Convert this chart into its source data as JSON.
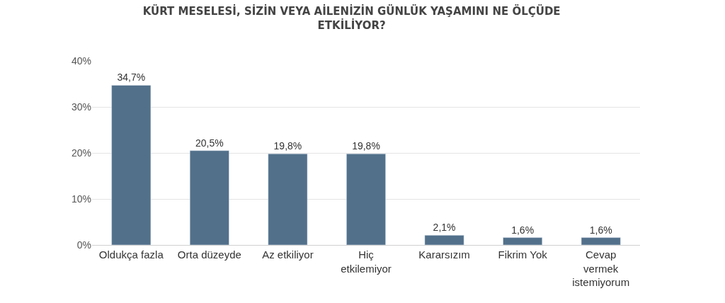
{
  "chart_data": {
    "type": "bar",
    "title": "KÜRT MESELESİ, SİZİN VEYA AİLENİZİN GÜNLÜK YAŞAMINI NE ÖLÇÜDE ETKİLİYOR?",
    "categories": [
      "Oldukça fazla",
      "Orta düzeyde",
      "Az etkiliyor",
      "Hiç etkilemiyor",
      "Kararsızım",
      "Fikrim Yok",
      "Cevap vermek istemiyorum"
    ],
    "values": [
      34.7,
      20.5,
      19.8,
      19.8,
      2.1,
      1.6,
      1.6
    ],
    "value_labels": [
      "34,7%",
      "20,5%",
      "19,8%",
      "19,8%",
      "2,1%",
      "1,6%",
      "1,6%"
    ],
    "color": "#52708a",
    "ylim": [
      0,
      40
    ],
    "yticks": [
      {
        "value": 0,
        "label": "0%"
      },
      {
        "value": 10,
        "label": "10%"
      },
      {
        "value": 20,
        "label": "20%"
      },
      {
        "value": 30,
        "label": "30%"
      },
      {
        "value": 40,
        "label": "40%"
      }
    ],
    "grid": "y"
  }
}
